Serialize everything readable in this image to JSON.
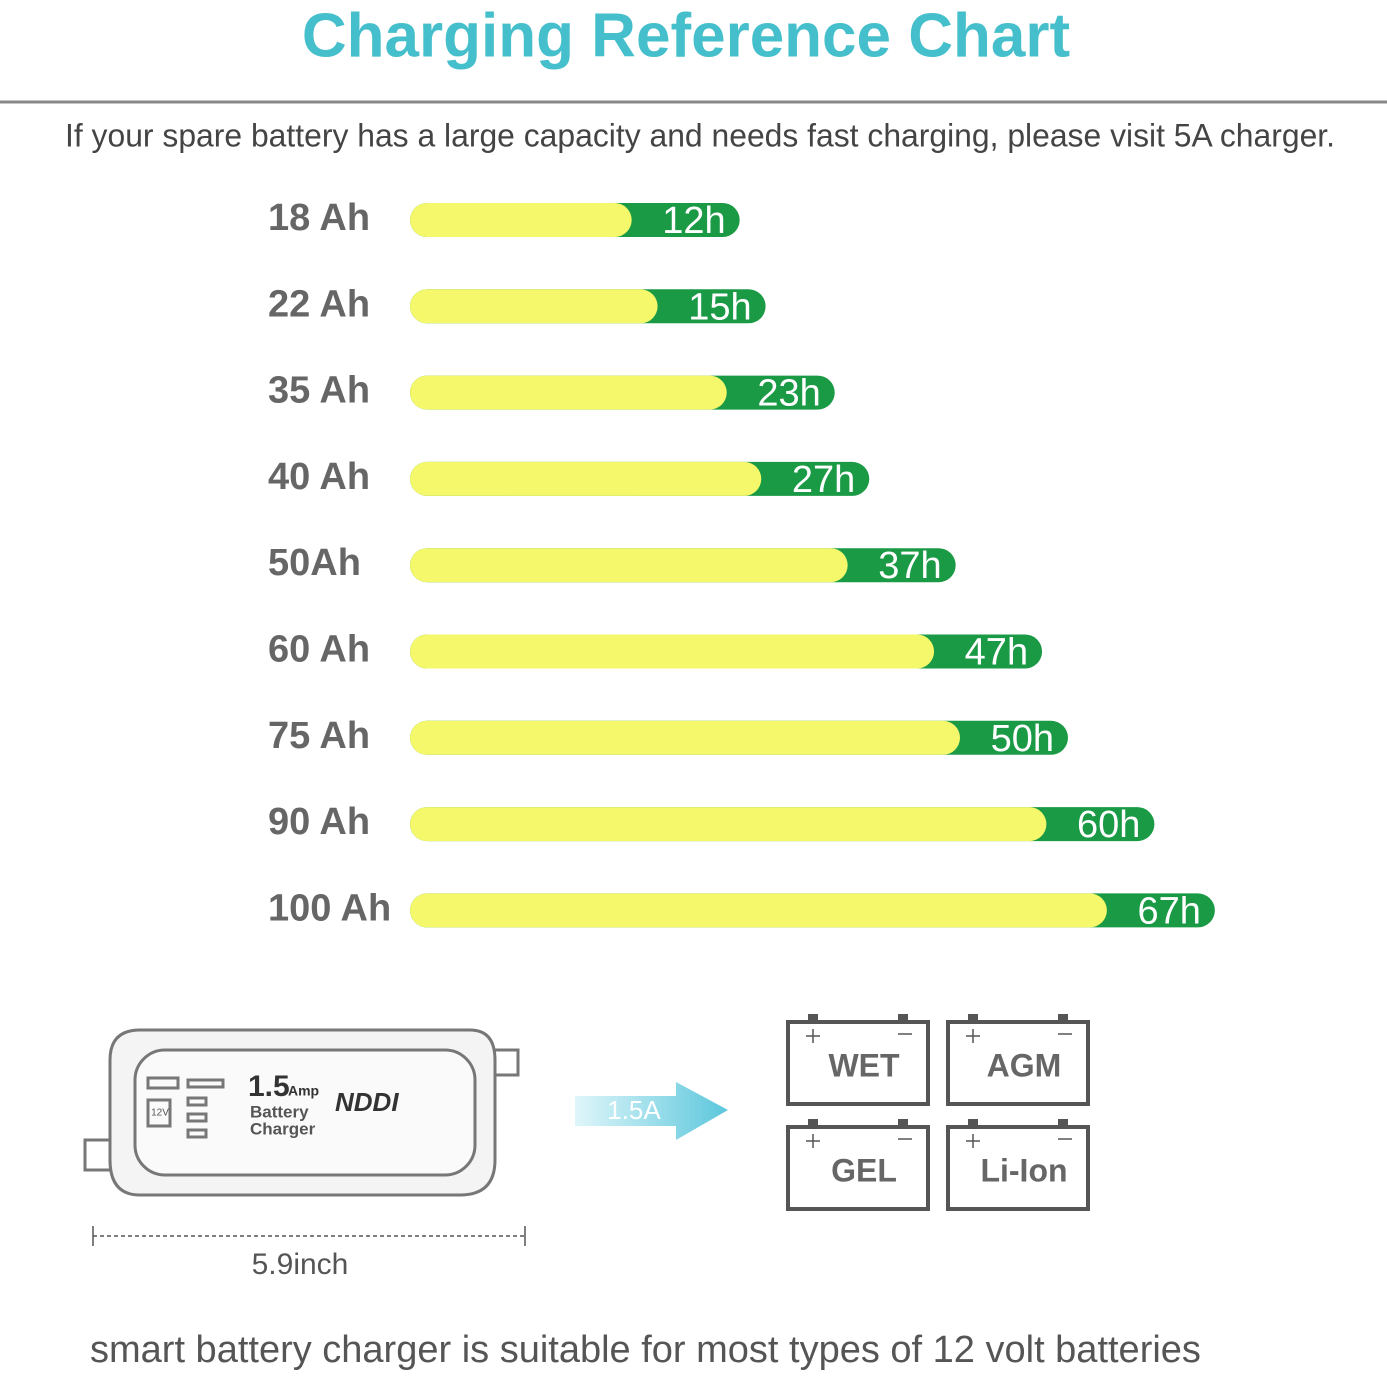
{
  "chart_data": {
    "type": "bar",
    "title": "Charging Reference Chart",
    "subtitle": "If your spare battery has a large capacity and needs fast charging, please visit 5A charger.",
    "categories": [
      "18 Ah",
      "22 Ah",
      "35 Ah",
      "40 Ah",
      "50Ah",
      "60 Ah",
      "75 Ah",
      "90 Ah",
      "100 Ah"
    ],
    "values": [
      12,
      15,
      23,
      27,
      37,
      47,
      50,
      60,
      67
    ],
    "value_labels": [
      "12h",
      "15h",
      "23h",
      "27h",
      "37h",
      "47h",
      "50h",
      "60h",
      "67h"
    ],
    "color": "#1a9a45",
    "highlight_color": "#f4f86a"
  },
  "charger": {
    "amp": "1.5",
    "amp_unit": "Amp",
    "line1": "Battery",
    "line2": "Charger",
    "brand": "NDDI",
    "voltage": "12V",
    "width_label": "5.9inch"
  },
  "arrow_label": "1.5A",
  "battery_types": [
    "WET",
    "AGM",
    "GEL",
    "Li-Ion"
  ],
  "footer": "smart battery charger is suitable for most types of 12 volt batteries"
}
